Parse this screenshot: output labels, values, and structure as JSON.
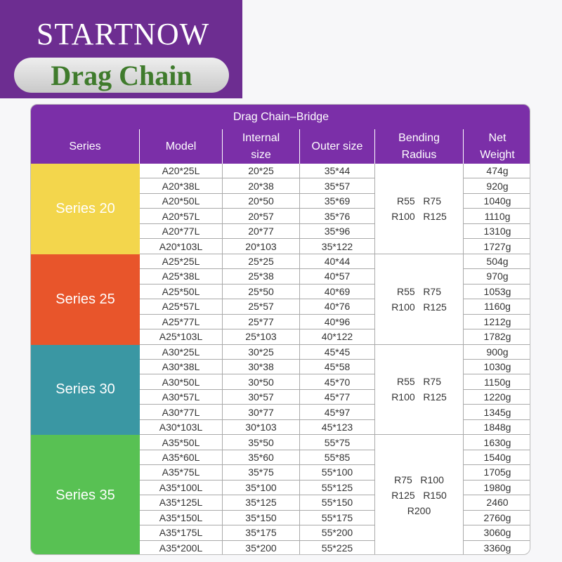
{
  "header": {
    "brand": "STARTNOW",
    "title": "Drag Chain"
  },
  "table": {
    "title": "Drag Chain–Bridge",
    "columns": [
      "Series",
      "Model",
      "Internal size",
      "Outer size",
      "Bending Radius",
      "Net Weight"
    ],
    "groups": [
      {
        "series": "Series 20",
        "color": "#f3d64c",
        "bending": [
          "R55   R75",
          "R100   R125"
        ],
        "rows": [
          [
            "A20*25L",
            "20*25",
            "35*44",
            "474g"
          ],
          [
            "A20*38L",
            "20*38",
            "35*57",
            "920g"
          ],
          [
            "A20*50L",
            "20*50",
            "35*69",
            "1040g"
          ],
          [
            "A20*57L",
            "20*57",
            "35*76",
            "1110g"
          ],
          [
            "A20*77L",
            "20*77",
            "35*96",
            "1310g"
          ],
          [
            "A20*103L",
            "20*103",
            "35*122",
            "1727g"
          ]
        ]
      },
      {
        "series": "Series 25",
        "color": "#e8552b",
        "bending": [
          "R55   R75",
          "R100   R125"
        ],
        "rows": [
          [
            "A25*25L",
            "25*25",
            "40*44",
            "504g"
          ],
          [
            "A25*38L",
            "25*38",
            "40*57",
            "970g"
          ],
          [
            "A25*50L",
            "25*50",
            "40*69",
            "1053g"
          ],
          [
            "A25*57L",
            "25*57",
            "40*76",
            "1160g"
          ],
          [
            "A25*77L",
            "25*77",
            "40*96",
            "1212g"
          ],
          [
            "A25*103L",
            "25*103",
            "40*122",
            "1782g"
          ]
        ]
      },
      {
        "series": "Series 30",
        "color": "#3a97a3",
        "bending": [
          "R55   R75",
          "R100   R125"
        ],
        "rows": [
          [
            "A30*25L",
            "30*25",
            "45*45",
            "900g"
          ],
          [
            "A30*38L",
            "30*38",
            "45*58",
            "1030g"
          ],
          [
            "A30*50L",
            "30*50",
            "45*70",
            "1150g"
          ],
          [
            "A30*57L",
            "30*57",
            "45*77",
            "1220g"
          ],
          [
            "A30*77L",
            "30*77",
            "45*97",
            "1345g"
          ],
          [
            "A30*103L",
            "30*103",
            "45*123",
            "1848g"
          ]
        ]
      },
      {
        "series": "Series 35",
        "color": "#58c153",
        "bending": [
          "R75   R100",
          "R125   R150",
          "R200"
        ],
        "rows": [
          [
            "A35*50L",
            "35*50",
            "55*75",
            "1630g"
          ],
          [
            "A35*60L",
            "35*60",
            "55*85",
            "1540g"
          ],
          [
            "A35*75L",
            "35*75",
            "55*100",
            "1705g"
          ],
          [
            "A35*100L",
            "35*100",
            "55*125",
            "1980g"
          ],
          [
            "A35*125L",
            "35*125",
            "55*150",
            "2460"
          ],
          [
            "A35*150L",
            "35*150",
            "55*175",
            "2760g"
          ],
          [
            "A35*175L",
            "35*175",
            "55*200",
            "3060g"
          ],
          [
            "A35*200L",
            "35*200",
            "55*225",
            "3360g"
          ]
        ]
      }
    ]
  }
}
